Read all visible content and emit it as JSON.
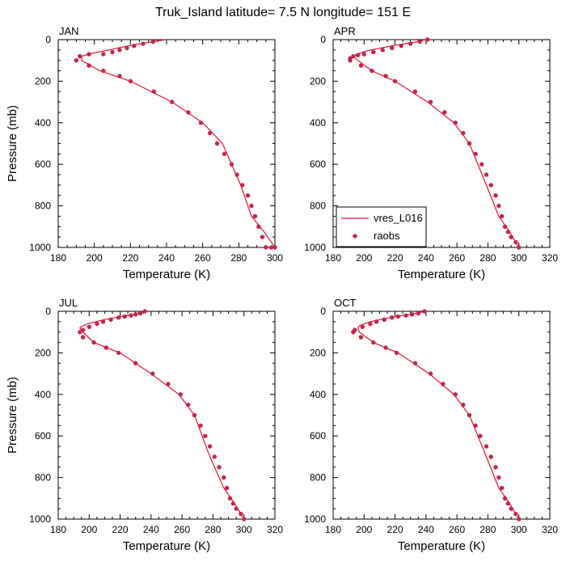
{
  "figure": {
    "title": "Truk_Island  latitude= 7.5 N longitude= 151 E"
  },
  "legend": {
    "model_label": "vres_L016",
    "obs_label": "raobs"
  },
  "colors": {
    "model_line": "#e8142b",
    "obs_marker": "#c4254f"
  },
  "chart_data": [
    {
      "type": "line",
      "panel": "JAN",
      "xlabel": "Temperature (K)",
      "ylabel": "Pressure (mb)",
      "xlim": [
        180,
        300
      ],
      "ylim": [
        1000,
        0
      ],
      "x_ticks": [
        "180",
        "200",
        "220",
        "240",
        "260",
        "280",
        "300"
      ],
      "y_ticks": [
        "0",
        "200",
        "400",
        "600",
        "800",
        "1000"
      ],
      "series": [
        {
          "name": "vres_L016",
          "kind": "line",
          "temperature": [
            239.5,
            232,
            225,
            219,
            213,
            208,
            202,
            197,
            193,
            193,
            203,
            220,
            243,
            260,
            271,
            281,
            287,
            294,
            300
          ],
          "pressure": [
            0,
            10,
            20,
            30,
            40,
            50,
            60,
            70,
            80,
            100,
            150,
            200,
            300,
            400,
            500,
            700,
            850,
            925,
            1000
          ]
        },
        {
          "name": "raobs",
          "kind": "scatter",
          "temperature": [
            232.5,
            227,
            222,
            218,
            214,
            210,
            205,
            197,
            192,
            190,
            197,
            205,
            214,
            220,
            233,
            243,
            252,
            259,
            264,
            268,
            272,
            276,
            279,
            282,
            285,
            287,
            289,
            291,
            293,
            295,
            298,
            300
          ],
          "pressure": [
            10,
            20,
            30,
            40,
            50,
            60,
            70,
            70,
            80,
            100,
            125,
            150,
            175,
            200,
            250,
            300,
            350,
            400,
            450,
            500,
            550,
            600,
            650,
            700,
            750,
            800,
            850,
            900,
            950,
            1000,
            1000,
            1000
          ]
        }
      ]
    },
    {
      "type": "line",
      "panel": "APR",
      "xlabel": "Temperature (K)",
      "ylabel": "",
      "xlim": [
        180,
        320
      ],
      "ylim": [
        1000,
        0
      ],
      "x_ticks": [
        "180",
        "200",
        "220",
        "240",
        "260",
        "280",
        "300",
        "320"
      ],
      "y_ticks": [
        "0",
        "200",
        "400",
        "600",
        "800",
        "1000"
      ],
      "series": [
        {
          "name": "vres_L016",
          "kind": "line",
          "temperature": [
            240,
            234,
            226,
            218,
            211,
            204,
            199,
            195,
            193,
            196,
            205,
            220,
            241,
            258,
            268,
            279,
            287,
            294,
            300
          ],
          "pressure": [
            0,
            10,
            20,
            30,
            40,
            50,
            60,
            70,
            80,
            100,
            150,
            200,
            300,
            400,
            500,
            700,
            850,
            925,
            1000
          ]
        },
        {
          "name": "raobs",
          "kind": "scatter",
          "temperature": [
            241,
            236,
            230,
            224,
            218,
            212,
            206,
            200,
            196,
            193,
            191,
            191,
            198,
            205,
            214,
            220,
            233,
            243,
            252,
            259,
            264,
            268,
            272,
            276,
            279,
            282,
            285,
            287,
            289,
            291,
            293,
            295,
            298,
            300
          ],
          "pressure": [
            0,
            10,
            20,
            30,
            40,
            50,
            60,
            70,
            75,
            80,
            90,
            100,
            125,
            150,
            175,
            200,
            250,
            300,
            350,
            400,
            450,
            500,
            550,
            600,
            650,
            700,
            750,
            800,
            850,
            900,
            925,
            950,
            975,
            1000
          ]
        }
      ]
    },
    {
      "type": "line",
      "panel": "JUL",
      "xlabel": "Temperature (K)",
      "ylabel": "Pressure (mb)",
      "xlim": [
        180,
        320
      ],
      "ylim": [
        1000,
        0
      ],
      "x_ticks": [
        "180",
        "200",
        "220",
        "240",
        "260",
        "280",
        "300",
        "320"
      ],
      "y_ticks": [
        "0",
        "200",
        "400",
        "600",
        "800",
        "1000"
      ],
      "series": [
        {
          "name": "vres_L016",
          "kind": "line",
          "temperature": [
            237,
            231,
            224,
            217,
            210,
            204,
            199,
            196,
            194,
            196,
            203,
            220,
            240,
            258,
            268,
            278,
            287,
            294,
            300
          ],
          "pressure": [
            0,
            10,
            20,
            30,
            40,
            50,
            60,
            70,
            80,
            100,
            150,
            200,
            300,
            400,
            500,
            700,
            850,
            925,
            1000
          ]
        },
        {
          "name": "raobs",
          "kind": "scatter",
          "temperature": [
            236,
            233,
            230,
            227,
            223,
            219,
            214,
            209,
            205,
            200,
            196,
            194,
            196,
            203,
            211,
            219,
            230,
            241,
            251,
            259,
            264,
            268,
            272,
            275,
            278,
            281,
            284,
            287,
            289,
            291,
            293,
            295,
            298,
            300
          ],
          "pressure": [
            0,
            10,
            15,
            20,
            25,
            30,
            40,
            50,
            60,
            75,
            90,
            100,
            125,
            150,
            175,
            200,
            250,
            300,
            350,
            400,
            450,
            500,
            550,
            600,
            650,
            700,
            750,
            800,
            850,
            900,
            925,
            950,
            975,
            1000
          ]
        }
      ]
    },
    {
      "type": "line",
      "panel": "OCT",
      "xlabel": "Temperature (K)",
      "ylabel": "",
      "xlim": [
        180,
        320
      ],
      "ylim": [
        1000,
        0
      ],
      "x_ticks": [
        "180",
        "200",
        "220",
        "240",
        "260",
        "280",
        "300",
        "320"
      ],
      "y_ticks": [
        "0",
        "200",
        "400",
        "600",
        "800",
        "1000"
      ],
      "series": [
        {
          "name": "vres_L016",
          "kind": "line",
          "temperature": [
            240,
            233,
            225,
            217,
            210,
            204,
            200,
            197,
            196,
            197,
            206,
            222,
            242,
            258,
            268,
            279,
            287,
            294,
            300
          ],
          "pressure": [
            0,
            10,
            20,
            30,
            40,
            50,
            60,
            70,
            80,
            100,
            150,
            200,
            300,
            400,
            500,
            700,
            850,
            925,
            1000
          ]
        },
        {
          "name": "raobs",
          "kind": "scatter",
          "temperature": [
            239,
            235,
            231,
            227,
            222,
            218,
            213,
            208,
            204,
            199,
            194,
            193,
            198,
            206,
            214,
            221,
            233,
            243,
            251,
            259,
            264,
            268,
            272,
            275,
            279,
            282,
            285,
            287,
            289,
            291,
            293,
            295,
            298,
            300
          ],
          "pressure": [
            0,
            10,
            15,
            20,
            25,
            30,
            40,
            50,
            60,
            75,
            90,
            100,
            125,
            150,
            175,
            200,
            250,
            300,
            350,
            400,
            450,
            500,
            550,
            600,
            650,
            700,
            750,
            800,
            850,
            900,
            925,
            950,
            975,
            1000
          ]
        }
      ]
    }
  ]
}
